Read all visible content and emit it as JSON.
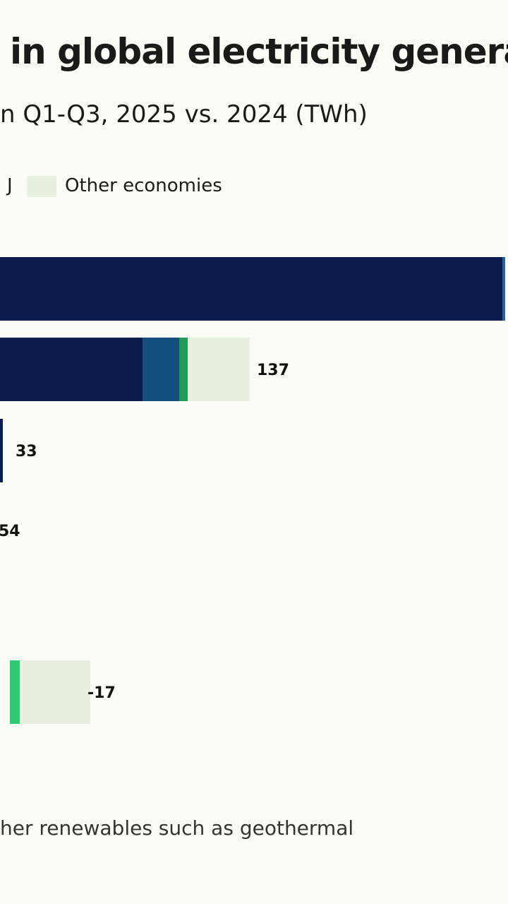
{
  "title": "in global electricity genera",
  "subtitle": "n Q1-Q3, 2025 vs. 2024 (TWh)",
  "legend": {
    "partial_label": "J",
    "other_label": "Other economies",
    "other_color": "#e6f2df"
  },
  "colors": {
    "navy": "#0c1c4e",
    "blue": "#154f80",
    "green": "#1e9b57",
    "bright_green": "#2ecc71",
    "other": "#e6f2df",
    "edge_blue": "#1f6699"
  },
  "chart_data": {
    "type": "bar",
    "orientation": "horizontal",
    "stacked": true,
    "unit": "TWh",
    "bars": [
      {
        "label": "",
        "value_label": "",
        "segments": [
          {
            "color": "navy",
            "value": 358
          },
          {
            "color": "edge_blue",
            "value": 2
          }
        ]
      },
      {
        "label": "",
        "value_label": "137",
        "segments": [
          {
            "color": "navy",
            "value": 103
          },
          {
            "color": "blue",
            "value": 26
          },
          {
            "color": "green",
            "value": 6
          },
          {
            "color": "other",
            "value": 44
          }
        ]
      },
      {
        "label": "",
        "value_label": "33",
        "segments": [
          {
            "color": "navy",
            "value": 4
          }
        ]
      },
      {
        "label": "",
        "value_label": "54",
        "segments": []
      },
      {
        "label": "",
        "value_label": "-17",
        "segments": [
          {
            "color": "bright_green",
            "value": 7
          },
          {
            "color": "other",
            "value": 50
          }
        ]
      }
    ]
  },
  "footnote": "her renewables such as geothermal"
}
